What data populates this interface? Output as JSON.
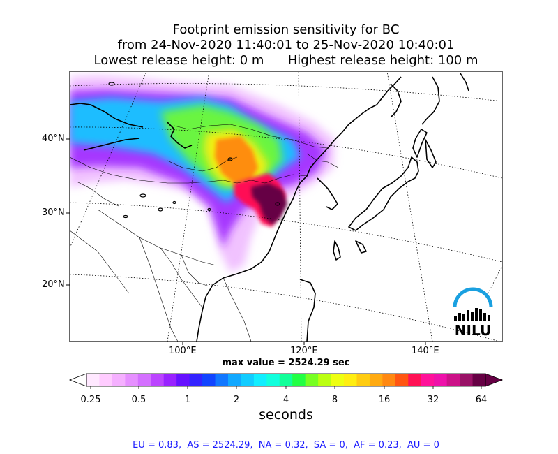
{
  "title": {
    "line1": "Footprint emission sensitivity for BC",
    "line2": "from 24-Nov-2020 11:40:01 to 25-Nov-2020 10:40:01",
    "line3_left": "Lowest release height: 0 m",
    "line3_right": "Highest release height: 100 m"
  },
  "lat_labels": [
    "40°N",
    "30°N",
    "20°N"
  ],
  "lon_labels": [
    "100°E",
    "120°E",
    "140°E"
  ],
  "max_value": "max value = 2524.29 sec",
  "logo": {
    "text": "NILU",
    "arc_color": "#1aa0e0"
  },
  "colorbar": {
    "tick_labels": [
      "0.25",
      "0.5",
      "1",
      "2",
      "4",
      "8",
      "16",
      "32",
      "64"
    ],
    "units": "seconds",
    "colors": [
      "#ffe8ff",
      "#ffccff",
      "#f5b0ff",
      "#e690ff",
      "#d470ff",
      "#bb44ff",
      "#9922ff",
      "#6611ff",
      "#3322ff",
      "#1144ff",
      "#1177ff",
      "#11a8ff",
      "#11ccff",
      "#11eeff",
      "#11ffdd",
      "#11ff99",
      "#22ff44",
      "#77ff22",
      "#bbff11",
      "#eeff11",
      "#ffee11",
      "#ffcc11",
      "#ffaa11",
      "#ff8811",
      "#ff5511",
      "#ff1155",
      "#ff1199",
      "#ee11aa",
      "#cc1188",
      "#991166",
      "#660044"
    ]
  },
  "regions": "EU = 0.83,  AS = 2524.29,  NA = 0.32,  SA = 0,  AF = 0.23,  AU = 0"
}
